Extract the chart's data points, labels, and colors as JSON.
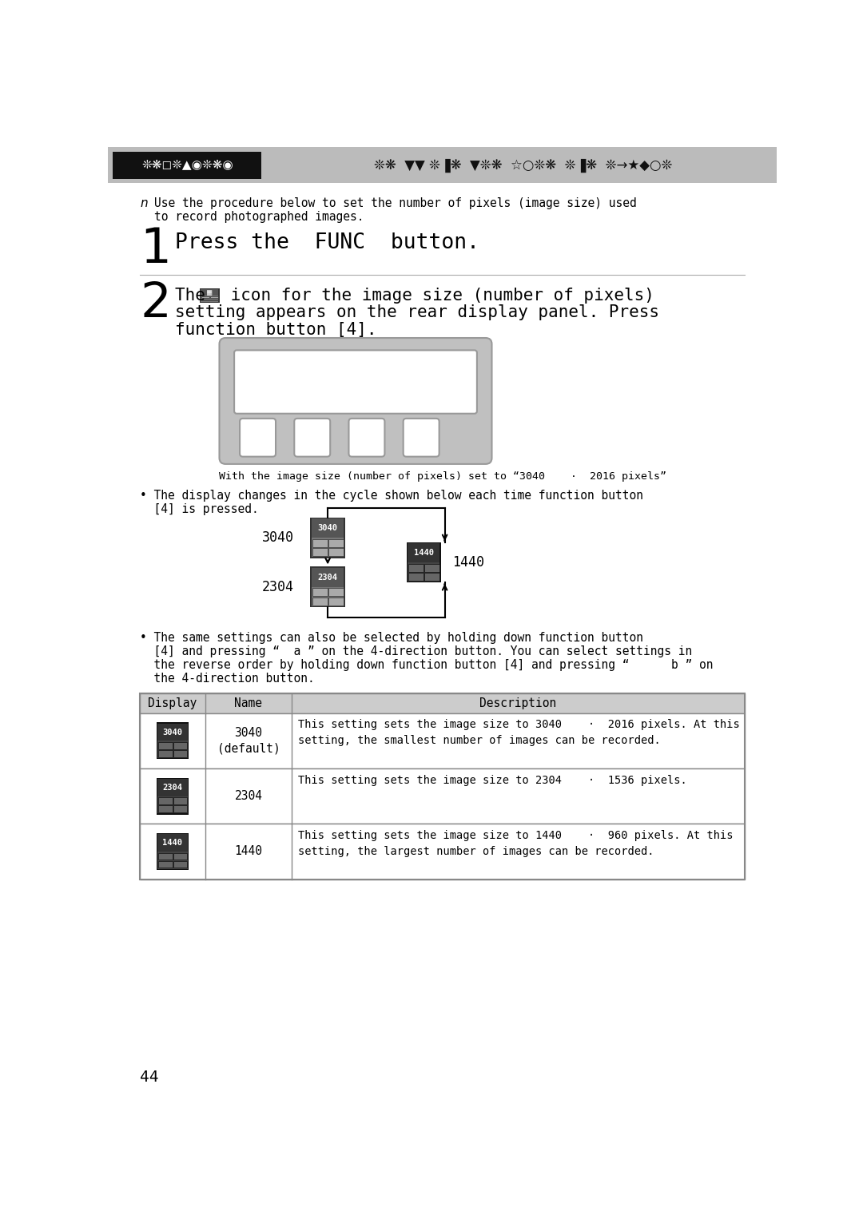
{
  "bg_color": "#ffffff",
  "header_gray": "#bbbbbb",
  "header_black_box_color": "#111111",
  "text_color": "#000000",
  "step1_text": "Press the  FUNC  button.",
  "step2_line1_pre": "The ",
  "step2_line1_post": " icon for the image size (number of pixels)",
  "step2_line2": "setting appears on the rear display panel. Press",
  "step2_line3": "function button [4].",
  "intro_line1": "Use the procedure below to set the number of pixels (image size) used",
  "intro_line2": "to record photographed images.",
  "caption": "With the image size (number of pixels) set to “3040    ·  2016 pixels”",
  "bullet1_line1": "• The display changes in the cycle shown below each time function button",
  "bullet1_line2": "  [4] is pressed.",
  "bullet2_line1": "• The same settings can also be selected by holding down function button",
  "bullet2_line2": "  [4] and pressing “  a ” on the 4-direction button. You can select settings in",
  "bullet2_line3": "  the reverse order by holding down function button [4] and pressing “      b ” on",
  "bullet2_line4": "  the 4-direction button.",
  "cycle_labels": [
    "3040",
    "2304",
    "1440"
  ],
  "table_headers": [
    "Display",
    "Name",
    "Description"
  ],
  "table_rows": [
    {
      "display_num": "3040",
      "name": "3040\n(default)",
      "desc": "This setting sets the image size to 3040    ·  2016 pixels. At this\nsetting, the smallest number of images can be recorded."
    },
    {
      "display_num": "2304",
      "name": "2304",
      "desc": "This setting sets the image size to 2304    ·  1536 pixels."
    },
    {
      "display_num": "1440",
      "name": "1440",
      "desc": "This setting sets the image size to 1440    ·  960 pixels. At this\nsetting, the largest number of images can be recorded."
    }
  ],
  "page_number": "44",
  "table_header_bg": "#cccccc",
  "table_border_color": "#888888",
  "panel_gray": "#c0c0c0",
  "icon_dark": "#222222",
  "icon_mid": "#666666",
  "icon_light": "#999999"
}
